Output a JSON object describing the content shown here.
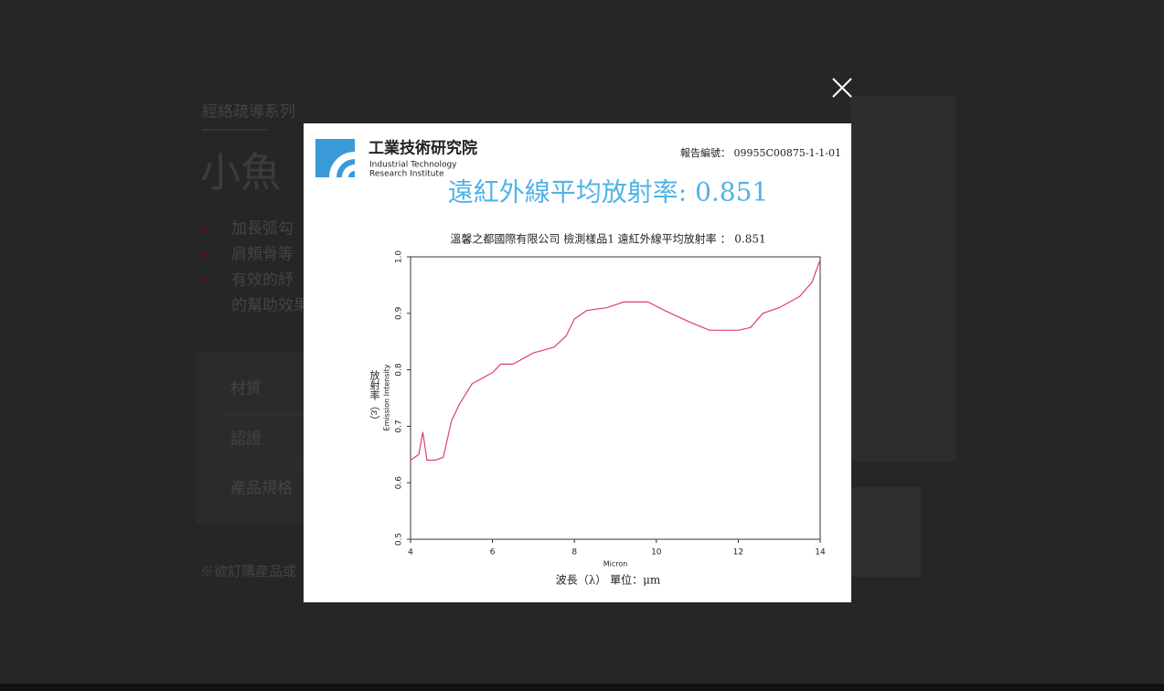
{
  "background": {
    "breadcrumb": "經絡疏導系列",
    "product_title": "小魚",
    "bullets": [
      "加長弧勾",
      "肩頰骨等",
      "有效的紓",
      "的幫助效果"
    ],
    "specs": [
      "材質",
      "認證",
      "產品規格"
    ],
    "note": "※欲訂購產品或"
  },
  "report": {
    "org_name": "工業技術研究院",
    "org_name_en_1": "Industrial Technology",
    "org_name_en_2": "Research Institute",
    "report_number": "報告編號： 09955C00875-1-1-01",
    "headline": "遠紅外線平均放射率: 0.851"
  },
  "chart_data": {
    "type": "line",
    "title": "溫馨之都國際有限公司 檢測樣品1 遠紅外線平均放射率 ： 0.851",
    "x_label": "Micron",
    "x_label_2": "波長（λ）  單位：μm",
    "y_label": "放射率（ε）",
    "y_label_2": "Emission Intensity",
    "x": [
      4.0,
      4.2,
      4.3,
      4.4,
      4.6,
      4.8,
      5.0,
      5.2,
      5.5,
      6.0,
      6.2,
      6.5,
      7.0,
      7.5,
      7.8,
      8.0,
      8.3,
      8.8,
      9.2,
      9.8,
      10.2,
      10.8,
      11.3,
      12.0,
      12.3,
      12.6,
      13.0,
      13.5,
      13.8,
      14.0
    ],
    "values": [
      0.64,
      0.65,
      0.69,
      0.64,
      0.64,
      0.645,
      0.71,
      0.74,
      0.775,
      0.795,
      0.81,
      0.81,
      0.83,
      0.84,
      0.86,
      0.89,
      0.905,
      0.91,
      0.92,
      0.92,
      0.905,
      0.885,
      0.87,
      0.87,
      0.875,
      0.9,
      0.91,
      0.93,
      0.955,
      0.995
    ],
    "color": "#e0406a",
    "xlim": [
      4,
      14
    ],
    "xticks": [
      4,
      6,
      8,
      10,
      12,
      14
    ],
    "ylim": [
      0.5,
      1.0
    ],
    "yticks": [
      0.5,
      0.6,
      0.7,
      0.8,
      0.9,
      {
        "value": 1.0,
        "label": "1.0"
      }
    ]
  }
}
